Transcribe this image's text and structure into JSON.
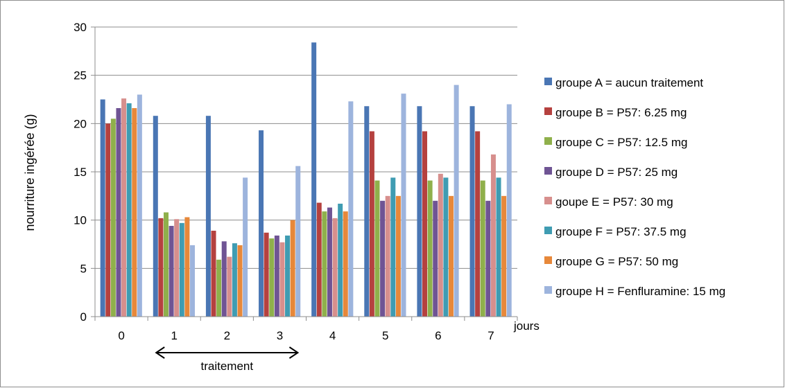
{
  "chart_data": {
    "type": "bar",
    "categories": [
      "0",
      "1",
      "2",
      "3",
      "4",
      "5",
      "6",
      "7"
    ],
    "xlabel": "jours",
    "ylabel": "nourriture ingérée (g)",
    "ylim": [
      0,
      30
    ],
    "yticks": [
      0,
      5,
      10,
      15,
      20,
      25,
      30
    ],
    "grid": true,
    "legend_position": "right",
    "series": [
      {
        "name": "groupe A = aucun traitement",
        "color": "#4a76b4",
        "values": [
          22.5,
          20.8,
          20.8,
          19.3,
          28.4,
          21.8,
          21.8,
          21.8
        ]
      },
      {
        "name": "groupe B = P57: 6.25 mg",
        "color": "#b5413f",
        "values": [
          20.0,
          10.2,
          8.9,
          8.7,
          11.8,
          19.2,
          19.2,
          19.2
        ]
      },
      {
        "name": "groupe C = P57: 12.5 mg",
        "color": "#8fb04b",
        "values": [
          20.5,
          10.8,
          5.9,
          8.1,
          10.9,
          14.1,
          14.1,
          14.1
        ]
      },
      {
        "name": "groupe D = P57: 25 mg",
        "color": "#6f5494",
        "values": [
          21.6,
          9.4,
          7.8,
          8.4,
          11.3,
          12.0,
          12.0,
          12.0
        ]
      },
      {
        "name": "goupe E = P57: 30 mg",
        "color": "#d78f8d",
        "values": [
          22.6,
          10.1,
          6.2,
          7.7,
          10.2,
          12.5,
          14.8,
          16.8
        ]
      },
      {
        "name": "groupe F = P57: 37.5 mg",
        "color": "#3f9cb2",
        "values": [
          22.1,
          9.7,
          7.6,
          8.4,
          11.7,
          14.4,
          14.4,
          14.4
        ]
      },
      {
        "name": "groupe G = P57: 50 mg",
        "color": "#e7883a",
        "values": [
          21.6,
          10.3,
          7.4,
          10.0,
          10.9,
          12.5,
          12.5,
          12.5
        ]
      },
      {
        "name": "groupe H = Fenfluramine: 15 mg",
        "color": "#9db4dd",
        "values": [
          23.0,
          7.4,
          14.4,
          15.6,
          22.3,
          23.1,
          24.0,
          22.0
        ]
      }
    ],
    "annotation": {
      "text": "traitement",
      "from": "1",
      "to": "3"
    }
  }
}
